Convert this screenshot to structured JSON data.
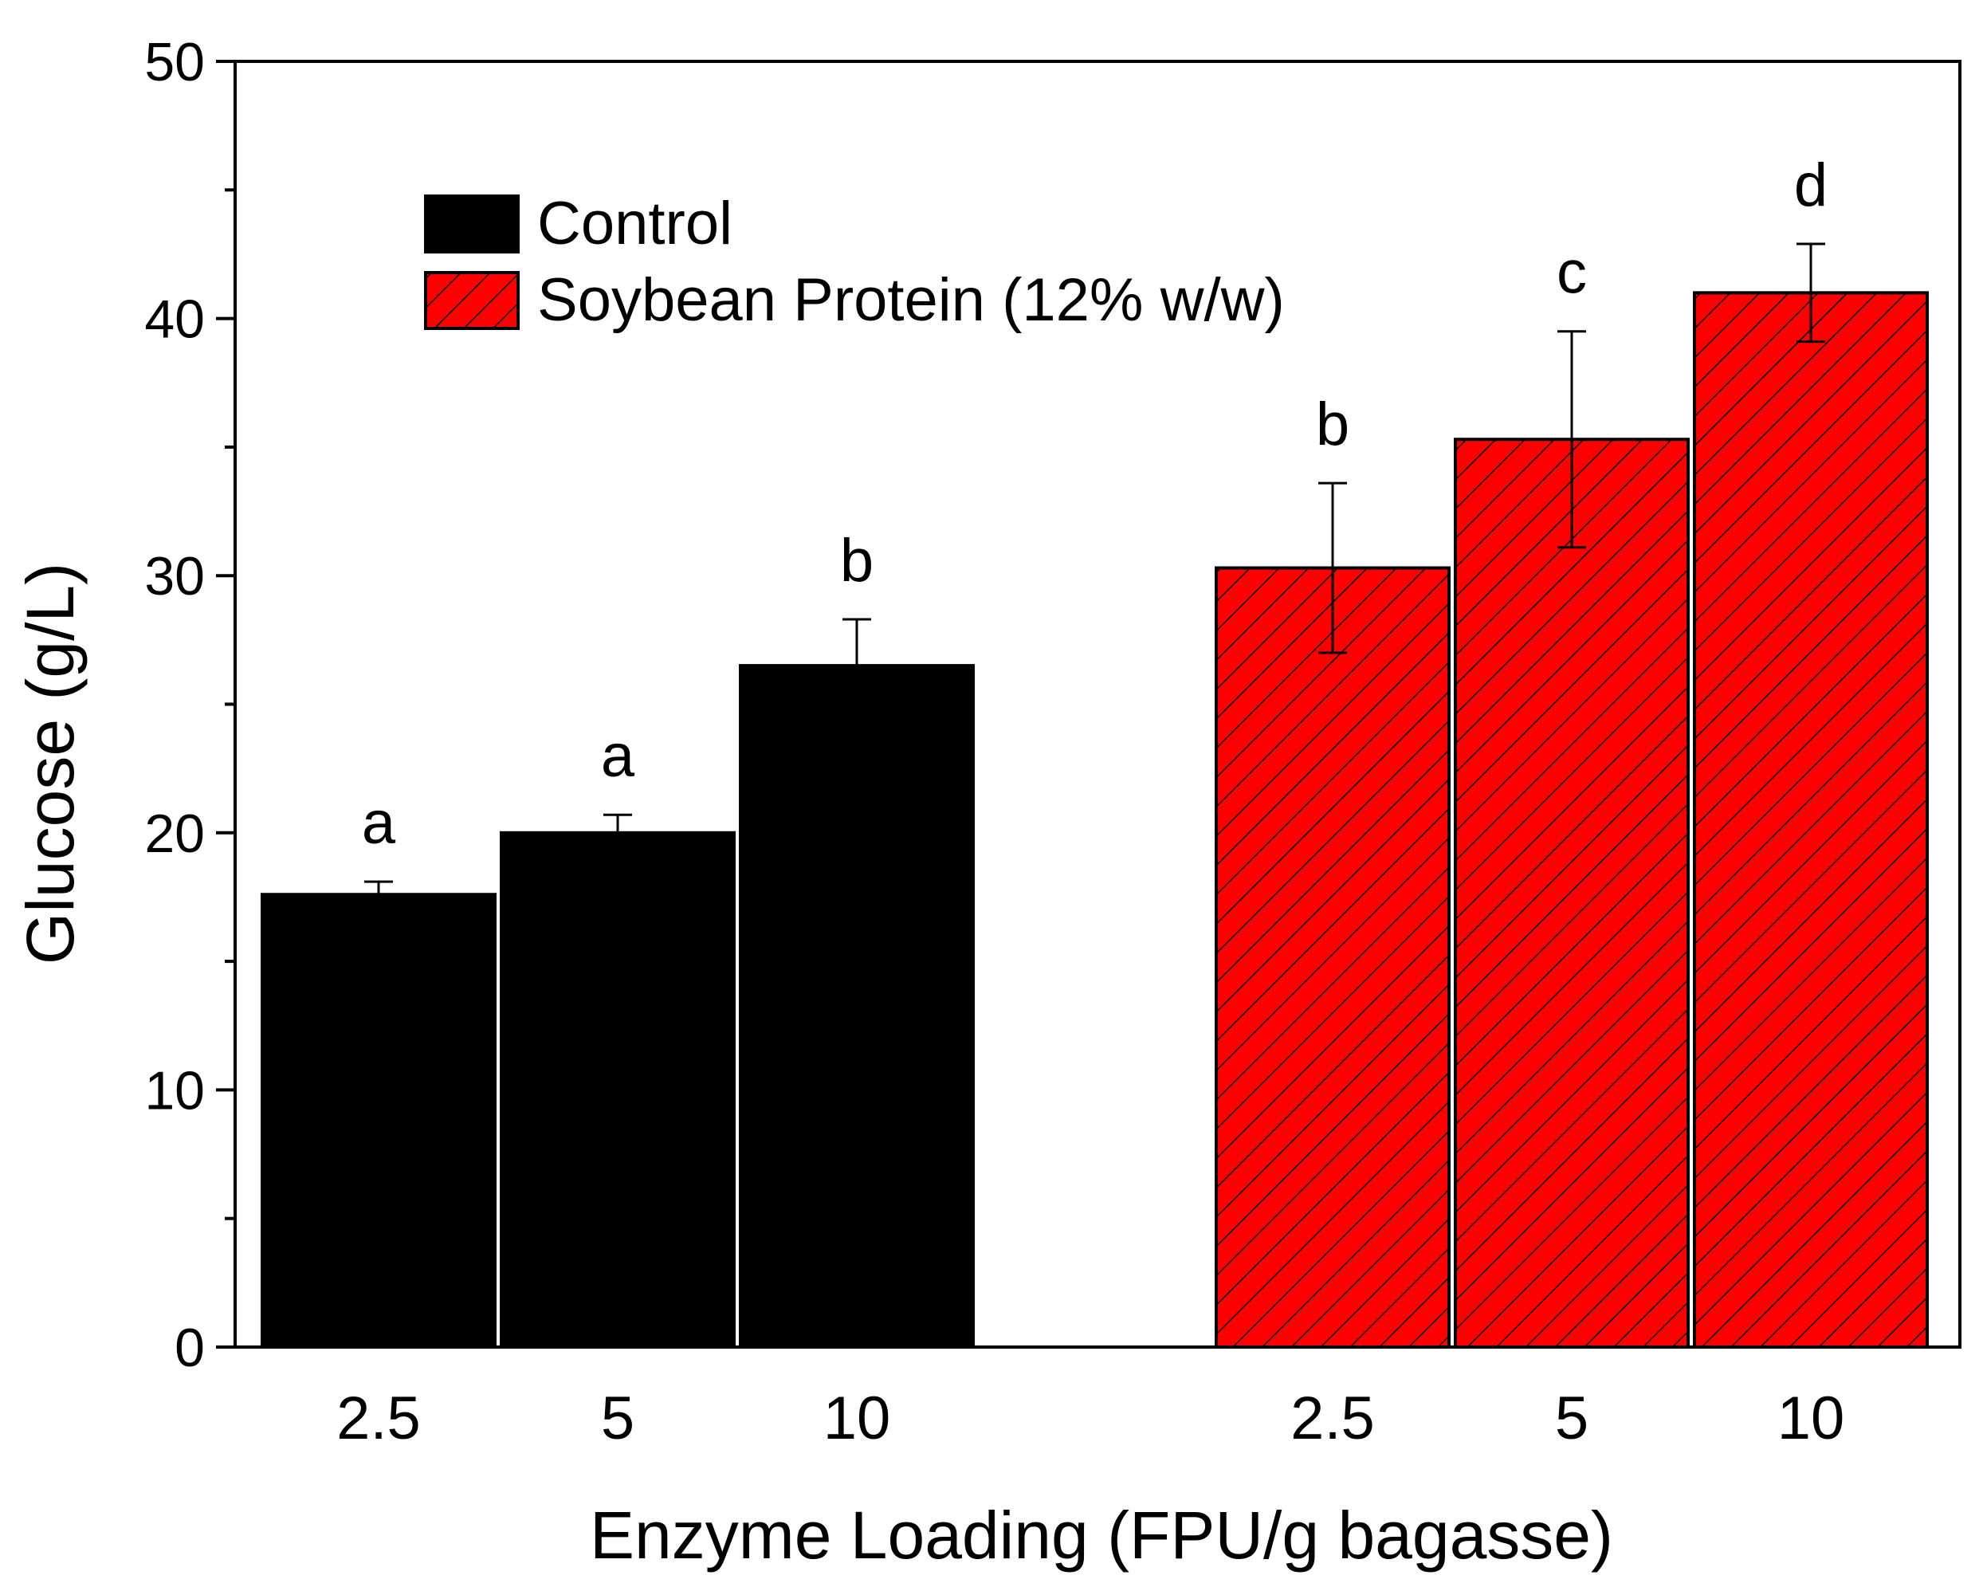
{
  "chart_data": {
    "type": "bar",
    "xlabel": "Enzyme Loading (FPU/g bagasse)",
    "ylabel": "Glucose (g/L)",
    "ylim": [
      0,
      50
    ],
    "yticks": [
      "0",
      "10",
      "20",
      "30",
      "40",
      "50"
    ],
    "grid": false,
    "legend_position": "top-left",
    "groups": [
      {
        "series": "Control",
        "color": "#000000",
        "pattern": "solid",
        "categories": [
          "2.5",
          "5",
          "10"
        ],
        "values": [
          17.6,
          20.0,
          26.5
        ],
        "errors": [
          0.5,
          0.7,
          1.8
        ],
        "letters": [
          "a",
          "a",
          "b"
        ]
      },
      {
        "series": "Soybean Protein (12% w/w)",
        "color": "#ff0000",
        "pattern": "hatched",
        "categories": [
          "2.5",
          "5",
          "10"
        ],
        "values": [
          30.3,
          35.3,
          41.0
        ],
        "errors": [
          3.3,
          4.2,
          1.9
        ],
        "letters": [
          "b",
          "c",
          "d"
        ]
      }
    ]
  }
}
